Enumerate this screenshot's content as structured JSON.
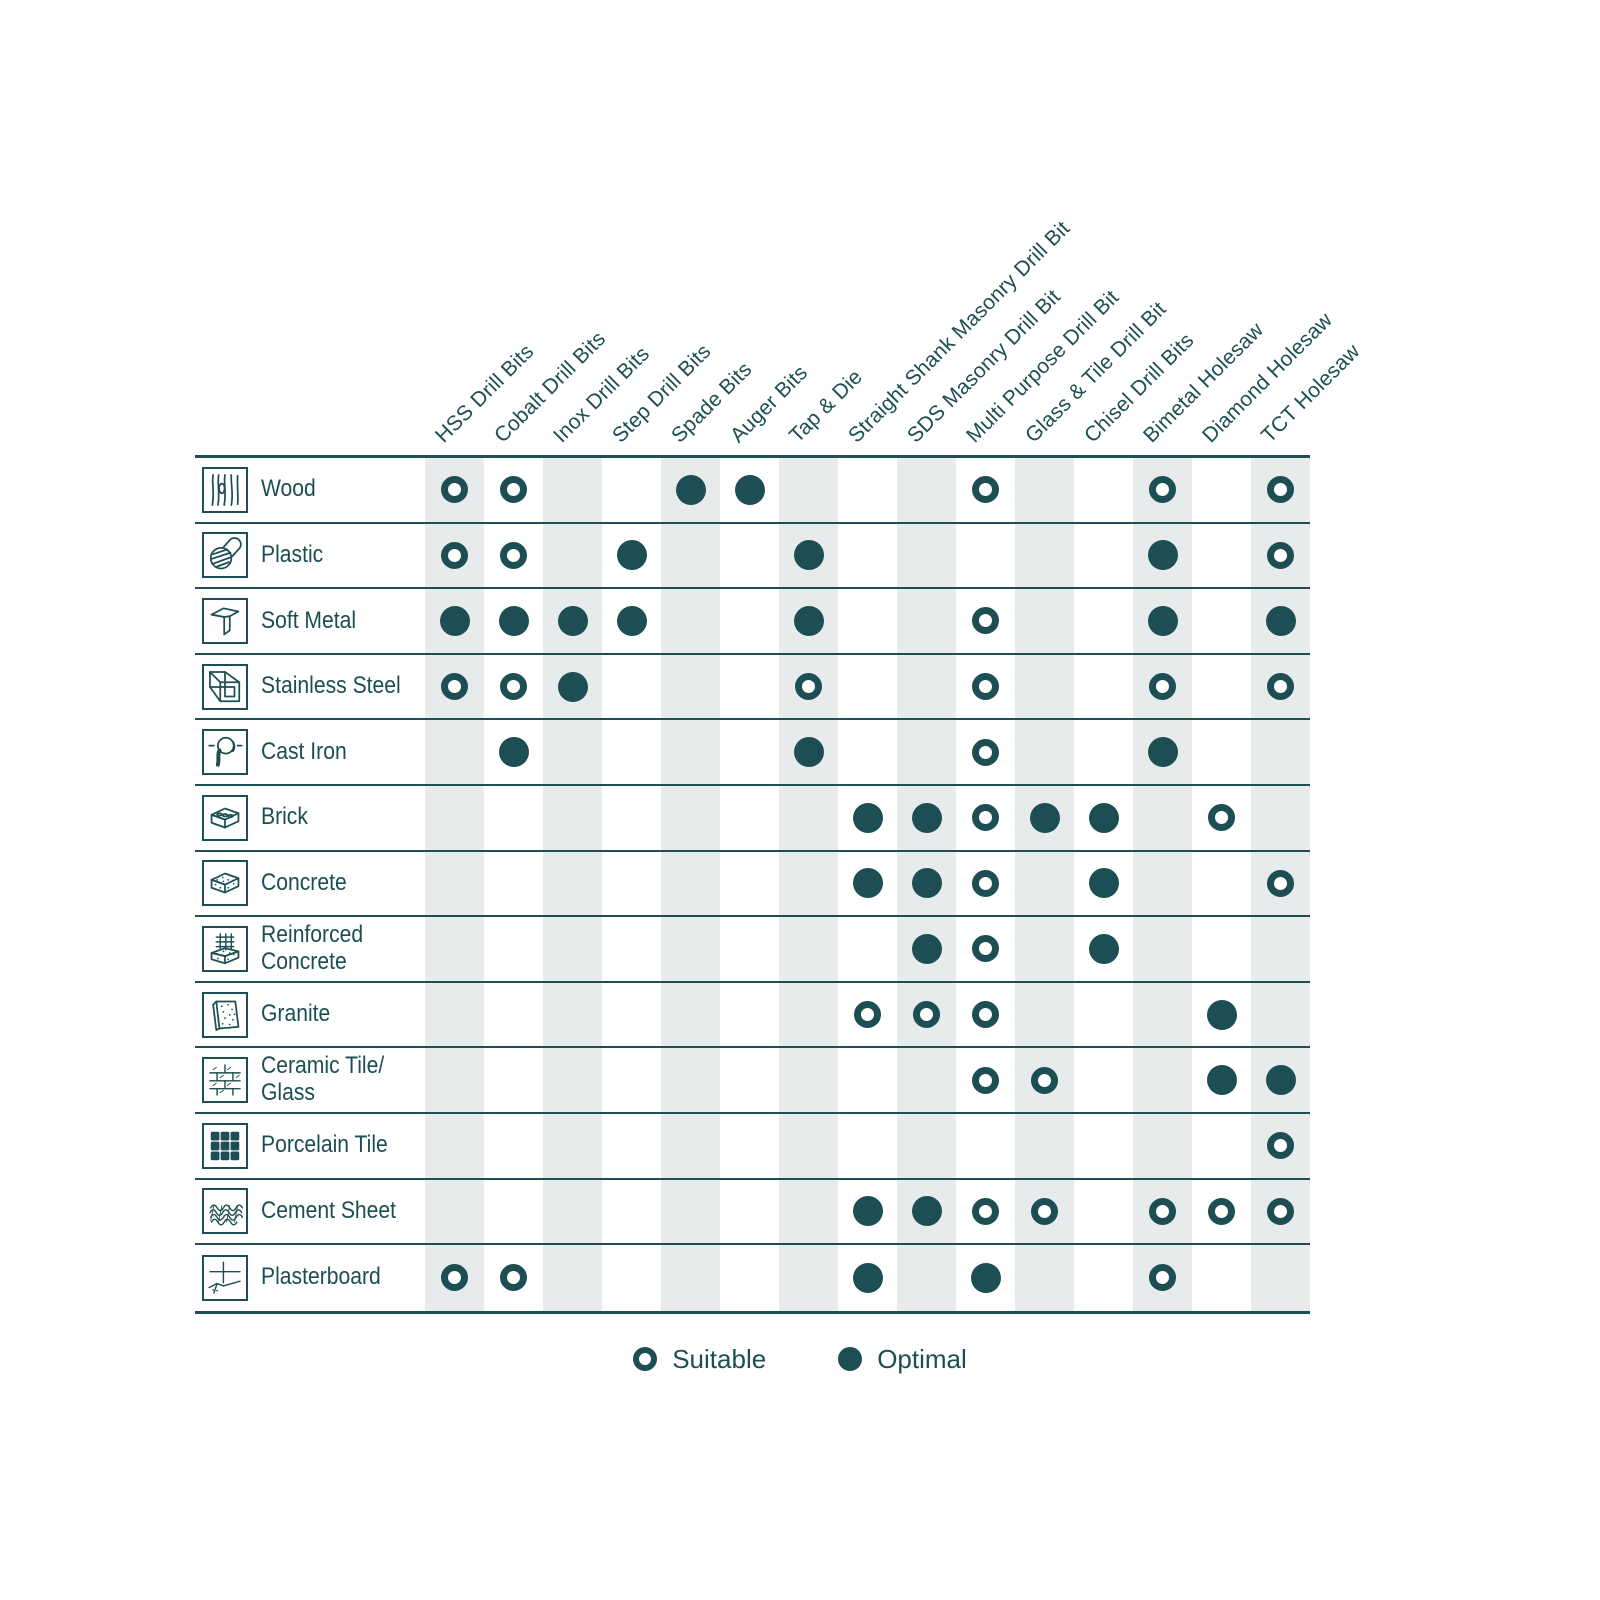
{
  "colors": {
    "teal": "#1C4E53",
    "stripe": "#E8EBEB",
    "background": "#FFFFFF"
  },
  "legend": {
    "suitable_label": "Suitable",
    "optimal_label": "Optimal"
  },
  "chart_data": {
    "type": "table",
    "title": "Drill bit / material compatibility matrix",
    "legend_position": "bottom",
    "stripe_pattern": "odd columns shaded",
    "cell_states": [
      "",
      "suitable",
      "optimal"
    ],
    "columns": [
      "HSS Drill Bits",
      "Cobalt Drill Bits",
      "Inox Drill Bits",
      "Step Drill Bits",
      "Spade Bits",
      "Auger Bits",
      "Tap & Die",
      "Straight Shank Masonry Drill Bit",
      "SDS Masonry Drill Bit",
      "Multi Purpose Drill Bit",
      "Glass & Tile Drill Bit",
      "Chisel Drill Bits",
      "Bimetal Holesaw",
      "Diamond Holesaw",
      "TCT Holesaw"
    ],
    "rows": [
      {
        "label": "Wood",
        "icon": "wood-icon",
        "cells": [
          "suitable",
          "suitable",
          "",
          "",
          "optimal",
          "optimal",
          "",
          "",
          "",
          "suitable",
          "",
          "",
          "suitable",
          "",
          "suitable"
        ]
      },
      {
        "label": "Plastic",
        "icon": "plastic-icon",
        "cells": [
          "suitable",
          "suitable",
          "",
          "optimal",
          "",
          "",
          "optimal",
          "",
          "",
          "",
          "",
          "",
          "optimal",
          "",
          "suitable"
        ]
      },
      {
        "label": "Soft Metal",
        "icon": "soft-metal-icon",
        "cells": [
          "optimal",
          "optimal",
          "optimal",
          "optimal",
          "",
          "",
          "optimal",
          "",
          "",
          "suitable",
          "",
          "",
          "optimal",
          "",
          "optimal"
        ]
      },
      {
        "label": "Stainless Steel",
        "icon": "stainless-steel-icon",
        "cells": [
          "suitable",
          "suitable",
          "optimal",
          "",
          "",
          "",
          "suitable",
          "",
          "",
          "suitable",
          "",
          "",
          "suitable",
          "",
          "suitable"
        ]
      },
      {
        "label": "Cast Iron",
        "icon": "cast-iron-icon",
        "cells": [
          "",
          "optimal",
          "",
          "",
          "",
          "",
          "optimal",
          "",
          "",
          "suitable",
          "",
          "",
          "optimal",
          "",
          ""
        ]
      },
      {
        "label": "Brick",
        "icon": "brick-icon",
        "cells": [
          "",
          "",
          "",
          "",
          "",
          "",
          "",
          "optimal",
          "optimal",
          "suitable",
          "optimal",
          "optimal",
          "",
          "suitable",
          ""
        ]
      },
      {
        "label": "Concrete",
        "icon": "concrete-icon",
        "cells": [
          "",
          "",
          "",
          "",
          "",
          "",
          "",
          "optimal",
          "optimal",
          "suitable",
          "",
          "optimal",
          "",
          "",
          "suitable"
        ]
      },
      {
        "label": "Reinforced\nConcrete",
        "icon": "reinforced-concrete-icon",
        "cells": [
          "",
          "",
          "",
          "",
          "",
          "",
          "",
          "",
          "optimal",
          "suitable",
          "",
          "optimal",
          "",
          "",
          ""
        ]
      },
      {
        "label": "Granite",
        "icon": "granite-icon",
        "cells": [
          "",
          "",
          "",
          "",
          "",
          "",
          "",
          "suitable",
          "suitable",
          "suitable",
          "",
          "",
          "",
          "optimal",
          ""
        ]
      },
      {
        "label": "Ceramic Tile/\nGlass",
        "icon": "ceramic-tile-glass-icon",
        "cells": [
          "",
          "",
          "",
          "",
          "",
          "",
          "",
          "",
          "",
          "suitable",
          "suitable",
          "",
          "",
          "optimal",
          "optimal"
        ]
      },
      {
        "label": "Porcelain Tile",
        "icon": "porcelain-tile-icon",
        "cells": [
          "",
          "",
          "",
          "",
          "",
          "",
          "",
          "",
          "",
          "",
          "",
          "",
          "",
          "",
          "suitable"
        ]
      },
      {
        "label": "Cement Sheet",
        "icon": "cement-sheet-icon",
        "cells": [
          "",
          "",
          "",
          "",
          "",
          "",
          "",
          "optimal",
          "optimal",
          "suitable",
          "suitable",
          "",
          "suitable",
          "suitable",
          "suitable"
        ]
      },
      {
        "label": "Plasterboard",
        "icon": "plasterboard-icon",
        "cells": [
          "suitable",
          "suitable",
          "",
          "",
          "",
          "",
          "",
          "optimal",
          "",
          "optimal",
          "",
          "",
          "suitable",
          "",
          ""
        ]
      }
    ]
  }
}
